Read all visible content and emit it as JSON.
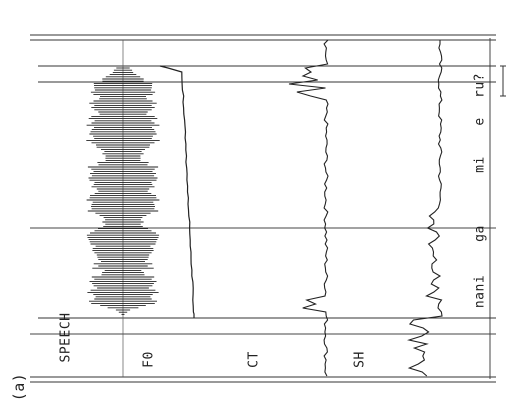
{
  "panel_label": "(a)",
  "channels": [
    {
      "id": "speech",
      "label": "SPEECH"
    },
    {
      "id": "f0",
      "label": "F0"
    },
    {
      "id": "ct",
      "label": "CT"
    },
    {
      "id": "sh",
      "label": "SH"
    }
  ],
  "syllables": [
    "nani",
    "ga",
    "mi",
    "e",
    "ru?"
  ],
  "colors": {
    "ink": "#222222",
    "paper": "#ffffff",
    "grid": "#555555"
  }
}
